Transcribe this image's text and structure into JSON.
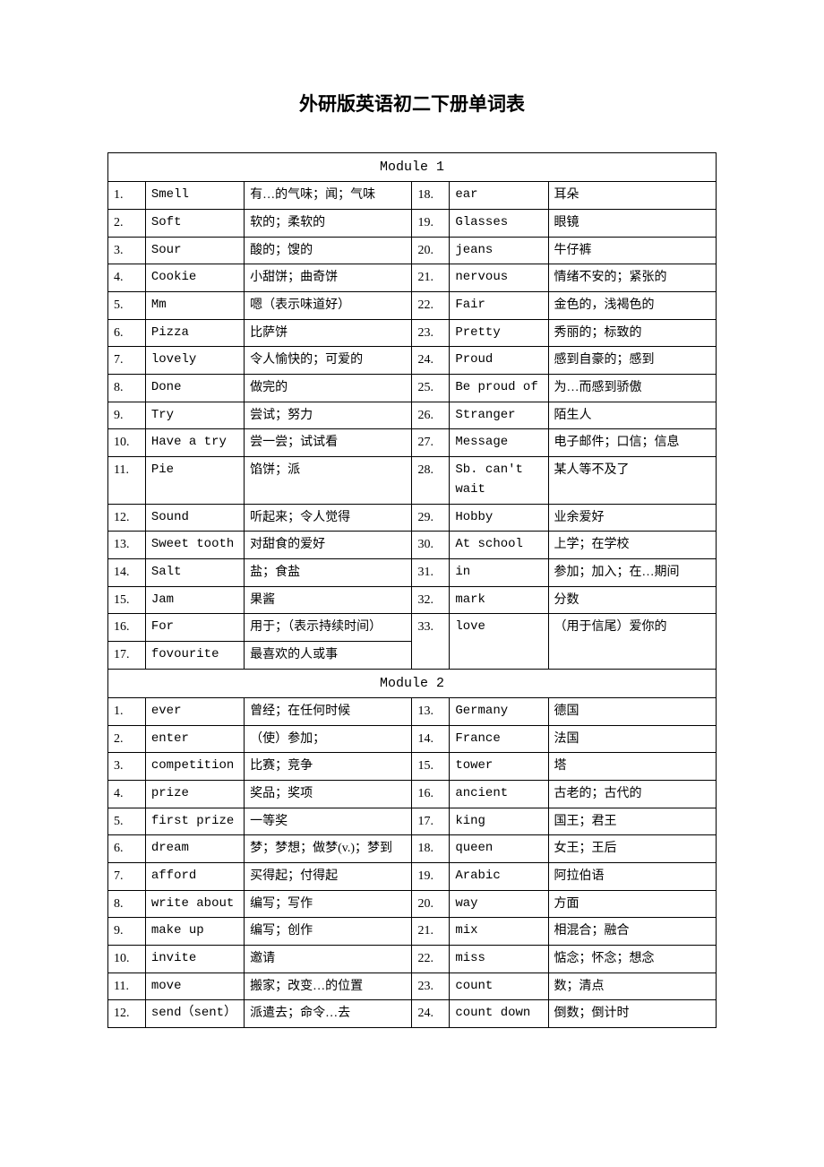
{
  "title": "外研版英语初二下册单词表",
  "background_color": "#ffffff",
  "border_color": "#000000",
  "text_color": "#000000",
  "font_size_body": 14,
  "font_size_title": 21,
  "modules": [
    {
      "header": "Module 1",
      "left": [
        {
          "n": "1.",
          "en": "Smell",
          "ch": "有…的气味；闻；气味"
        },
        {
          "n": "2.",
          "en": "Soft",
          "ch": "软的；柔软的"
        },
        {
          "n": "3.",
          "en": "Sour",
          "ch": "酸的；馊的"
        },
        {
          "n": "4.",
          "en": "Cookie",
          "ch": "小甜饼；曲奇饼"
        },
        {
          "n": "5.",
          "en": "Mm",
          "ch": "嗯（表示味道好）"
        },
        {
          "n": "6.",
          "en": "Pizza",
          "ch": "比萨饼"
        },
        {
          "n": "7.",
          "en": "lovely",
          "ch": "令人愉快的；可爱的"
        },
        {
          "n": "8.",
          "en": "Done",
          "ch": "做完的"
        },
        {
          "n": "",
          "en": "",
          "ch": ""
        },
        {
          "n": "9.",
          "en": "Try",
          "ch": "尝试；努力"
        },
        {
          "n": "10.",
          "en": "Have a try",
          "ch": "尝一尝；试试看"
        },
        {
          "n": "11.",
          "en": "Pie",
          "ch": "馅饼；派"
        },
        {
          "n": "",
          "en": "",
          "ch": ""
        },
        {
          "n": "12.",
          "en": "Sound",
          "ch": "听起来；令人觉得"
        },
        {
          "n": "13.",
          "en": "Sweet tooth",
          "ch": "对甜食的爱好"
        },
        {
          "n": "",
          "en": "",
          "ch": ""
        },
        {
          "n": "14.",
          "en": "Salt",
          "ch": "盐；食盐"
        },
        {
          "n": "15.",
          "en": "Jam",
          "ch": "果酱"
        },
        {
          "n": "16.",
          "en": "For",
          "ch": "用于；（表示持续时间）"
        },
        {
          "n": "17.",
          "en": "fovourite",
          "ch": "最喜欢的人或事"
        }
      ],
      "right": [
        {
          "n": "18.",
          "en": "ear",
          "ch": "耳朵"
        },
        {
          "n": "19.",
          "en": "Glasses",
          "ch": "眼镜"
        },
        {
          "n": "20.",
          "en": "jeans",
          "ch": "牛仔裤"
        },
        {
          "n": "21.",
          "en": "nervous",
          "ch": "情绪不安的；紧张的"
        },
        {
          "n": "22.",
          "en": "Fair",
          "ch": "金色的，浅褐色的"
        },
        {
          "n": "23.",
          "en": "Pretty",
          "ch": "秀丽的；标致的"
        },
        {
          "n": "24.",
          "en": "Proud",
          "ch": "感到自豪的；感到"
        },
        {
          "n": "25.",
          "en": "Be proud of",
          "ch": "为…而感到骄傲"
        },
        {
          "n": "",
          "en": "",
          "ch": ""
        },
        {
          "n": "26.",
          "en": "Stranger",
          "ch": "陌生人"
        },
        {
          "n": "27.",
          "en": "Message",
          "ch": "电子邮件；口信；信息"
        },
        {
          "n": "28.",
          "en": "Sb. can't wait",
          "ch": "某人等不及了"
        },
        {
          "n": "",
          "en": "",
          "ch": ""
        },
        {
          "n": "29.",
          "en": "Hobby",
          "ch": "业余爱好"
        },
        {
          "n": "30.",
          "en": "At school",
          "ch": "上学；在学校"
        },
        {
          "n": "",
          "en": "",
          "ch": ""
        },
        {
          "n": "31.",
          "en": "in",
          "ch": "参加；加入；在…期间"
        },
        {
          "n": "32.",
          "en": "mark",
          "ch": "分数"
        },
        {
          "n": "33.",
          "en": "love",
          "ch": "（用于信尾）爱你的"
        },
        {
          "n": "",
          "en": "",
          "ch": ""
        }
      ]
    },
    {
      "header": "Module 2",
      "left": [
        {
          "n": "1.",
          "en": "ever",
          "ch": "曾经；在任何时候"
        },
        {
          "n": "2.",
          "en": "enter",
          "ch": "（使）参加；"
        },
        {
          "n": "3.",
          "en": "competition",
          "ch": "比赛；竞争"
        },
        {
          "n": "4.",
          "en": "prize",
          "ch": "奖品；奖项"
        },
        {
          "n": "5.",
          "en": "first prize",
          "ch": "一等奖"
        },
        {
          "n": "6.",
          "en": "dream",
          "ch": "梦；梦想；做梦(v.)；梦到"
        },
        {
          "n": "",
          "en": "",
          "ch": ""
        },
        {
          "n": "7.",
          "en": "afford",
          "ch": "买得起；付得起"
        },
        {
          "n": "8.",
          "en": "write about",
          "ch": "编写；写作"
        },
        {
          "n": "",
          "en": "",
          "ch": ""
        },
        {
          "n": "9.",
          "en": "make up",
          "ch": "编写；创作"
        },
        {
          "n": "10.",
          "en": "invite",
          "ch": "邀请"
        },
        {
          "n": "11.",
          "en": "move",
          "ch": "搬家；改变…的位置"
        },
        {
          "n": "12.",
          "en": "send（sent）",
          "ch": "派遣去；命令…去"
        },
        {
          "n": "",
          "en": "",
          "ch": ""
        }
      ],
      "right": [
        {
          "n": "13.",
          "en": "Germany",
          "ch": "德国"
        },
        {
          "n": "14.",
          "en": "France",
          "ch": "法国"
        },
        {
          "n": "15.",
          "en": "tower",
          "ch": "塔"
        },
        {
          "n": "16.",
          "en": "ancient",
          "ch": "古老的；古代的"
        },
        {
          "n": "17.",
          "en": "king",
          "ch": "国王；君王"
        },
        {
          "n": "18.",
          "en": "queen",
          "ch": "女王；王后"
        },
        {
          "n": "",
          "en": "",
          "ch": ""
        },
        {
          "n": "19.",
          "en": "Arabic",
          "ch": "阿拉伯语"
        },
        {
          "n": "20.",
          "en": "way",
          "ch": "方面"
        },
        {
          "n": "",
          "en": "",
          "ch": ""
        },
        {
          "n": "21.",
          "en": "mix",
          "ch": "相混合；融合"
        },
        {
          "n": "22.",
          "en": "miss",
          "ch": "惦念；怀念；想念"
        },
        {
          "n": "23.",
          "en": "count",
          "ch": "数；清点"
        },
        {
          "n": "24.",
          "en": "count down",
          "ch": "倒数；倒计时"
        },
        {
          "n": "",
          "en": "",
          "ch": ""
        }
      ]
    }
  ]
}
